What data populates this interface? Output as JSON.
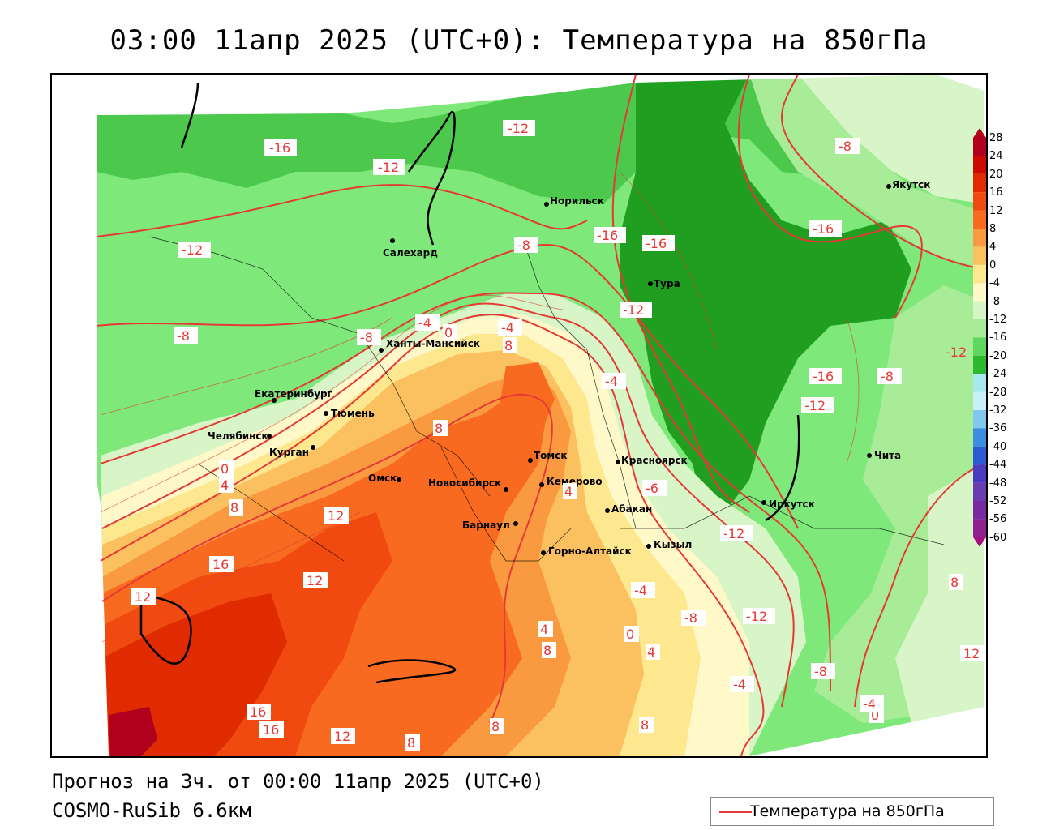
{
  "title": "03:00 11апр 2025 (UTC+0): Температура на 850гПа",
  "footer": {
    "forecast": "Прогноз на 3ч. от 00:00 11апр 2025 (UTC+0)",
    "model": "COSMO-RuSib 6.6км"
  },
  "legend": {
    "label": "Температура на 850гПа",
    "line_color": "#e53935"
  },
  "colorbar": {
    "levels": [
      "28",
      "24",
      "20",
      "16",
      "12",
      "8",
      "4",
      "0",
      "-4",
      "-8",
      "-12",
      "-16",
      "-20",
      "-24",
      "-28",
      "-32",
      "-36",
      "-40",
      "-44",
      "-48",
      "-52",
      "-56",
      "-60"
    ],
    "colors": [
      "#b0001e",
      "#cc0a00",
      "#e02a00",
      "#f04a10",
      "#f86a20",
      "#fa9a40",
      "#fbc060",
      "#fde890",
      "#fff8c8",
      "#d8f5c8",
      "#a8ec98",
      "#60d860",
      "#2eb82e",
      "#a8e8f0",
      "#c8f0f8",
      "#80c8f0",
      "#3c8ce0",
      "#2a5cd0",
      "#4a3cc0",
      "#6a3cb0",
      "#7a2aa0",
      "#902090",
      "#a81080"
    ]
  },
  "cities": [
    {
      "name": "Якутск"
    },
    {
      "name": "Норильск"
    },
    {
      "name": "Салехард"
    },
    {
      "name": "Тура"
    },
    {
      "name": "Ханты-Мансийск"
    },
    {
      "name": "Екатеринбург"
    },
    {
      "name": "Тюмень"
    },
    {
      "name": "Челябинск"
    },
    {
      "name": "Курган"
    },
    {
      "name": "Омск"
    },
    {
      "name": "Новосибирск"
    },
    {
      "name": "Томск"
    },
    {
      "name": "Кемерово"
    },
    {
      "name": "Красноярск"
    },
    {
      "name": "Абакан"
    },
    {
      "name": "Барнаул"
    },
    {
      "name": "Горно-Алтайск"
    },
    {
      "name": "Кызыл"
    },
    {
      "name": "Иркутск"
    },
    {
      "name": "Чита"
    }
  ],
  "contour_labels": [
    "-16",
    "-12",
    "-12",
    "-12",
    "-8",
    "-8",
    "-8",
    "-16",
    "-16",
    "-16",
    "-12",
    "-4",
    "-4",
    "0",
    "4",
    "8",
    "-8",
    "-16",
    "-12",
    "-12",
    "-8",
    "-4",
    "0",
    "4",
    "8",
    "8",
    "12",
    "16",
    "12",
    "12",
    "16",
    "16",
    "12",
    "8",
    "4",
    "8",
    "4",
    "0",
    "-6",
    "-12",
    "-4",
    "-8",
    "-12",
    "-8",
    "-4",
    "0",
    "-4",
    "8",
    "12",
    "8",
    "8"
  ]
}
